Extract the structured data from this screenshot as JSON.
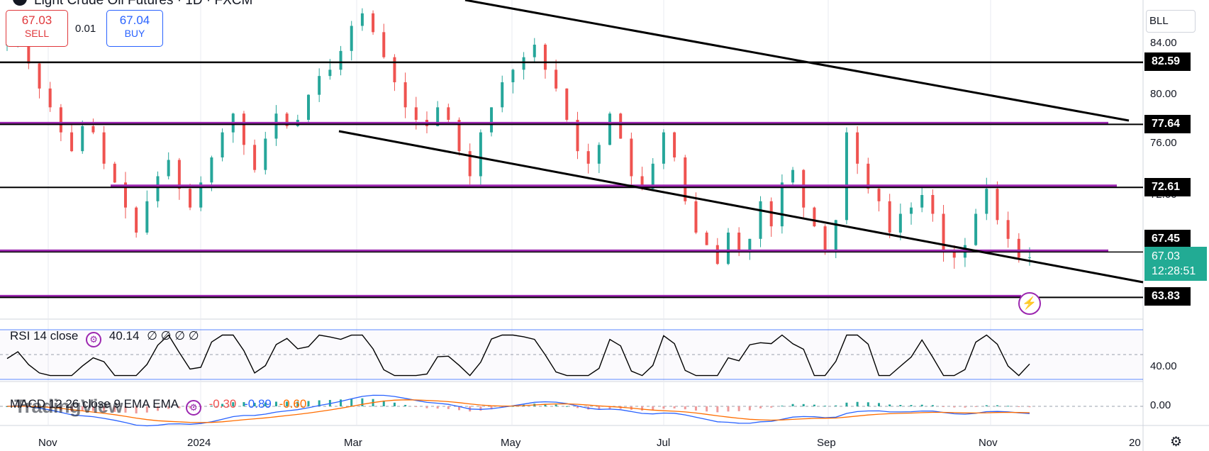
{
  "header": {
    "symbol_title": "Light Crude Oil Futures · 1D · FXCM",
    "sell_price": "67.03",
    "sell_label": "SELL",
    "spread": "0.01",
    "buy_price": "67.04",
    "buy_label": "BUY",
    "currency_badge": "BLL"
  },
  "price_axis": {
    "ticks": [
      "84.00",
      "80.00",
      "76.00",
      "72.00"
    ],
    "labels": [
      "82.59",
      "77.64",
      "72.61",
      "67.45",
      "63.83"
    ],
    "current_price": "67.03",
    "countdown": "12:28:51"
  },
  "rsi": {
    "title": "RSI 14 close",
    "value": "40.14",
    "placeholders": "∅ ∅ ∅ ∅",
    "axis_tick": "40.00"
  },
  "macd": {
    "title": "MACD 12 26 close 9 EMA EMA",
    "hist": "-0.30",
    "macd": "-0.89",
    "signal": "-0.60",
    "axis_tick": "0.00"
  },
  "time_axis": {
    "labels": [
      "Nov",
      "2024",
      "Mar",
      "May",
      "Jul",
      "Sep",
      "Nov",
      "20"
    ]
  },
  "watermark": "TradingView",
  "colors": {
    "up": "#26a69a",
    "down": "#ef5350",
    "sell": "#e0373b",
    "buy": "#2962ff",
    "current": "#22ab94",
    "zone": "#9c27b0"
  },
  "icons": {
    "rsi_settings": "gear-icon",
    "flash": "lightning-icon",
    "settings": "settings-icon"
  },
  "chart_data": {
    "type": "candlestick",
    "title": "",
    "xlabel": "",
    "ylabel": "",
    "ylim": [
      61.5,
      86.5
    ],
    "x_labels": [
      "Nov",
      "2024",
      "Mar",
      "May",
      "Jul",
      "Sep",
      "Nov",
      "20"
    ],
    "close_path": [
      [
        84.0,
        85.0
      ],
      [
        82.5,
        80.5
      ],
      [
        79.0,
        77.0
      ],
      [
        75.5,
        77.5
      ],
      [
        77.0,
        74.5
      ],
      [
        73.0,
        71.0
      ],
      [
        69.0,
        71.5
      ],
      [
        73.5,
        74.8
      ],
      [
        72.5,
        71.0
      ],
      [
        73.0,
        75.0
      ],
      [
        77.0,
        78.5
      ],
      [
        76.0,
        74.0
      ],
      [
        76.5,
        78.5
      ],
      [
        77.5,
        78.0
      ],
      [
        80.0,
        81.5
      ],
      [
        82.0,
        83.5
      ],
      [
        85.5,
        86.5
      ],
      [
        85.0,
        83.0
      ],
      [
        81.0,
        79.0
      ],
      [
        78.0,
        77.5
      ],
      [
        79.0,
        78.0
      ],
      [
        75.5,
        73.5
      ],
      [
        77.0,
        79.0
      ],
      [
        81.0,
        82.0
      ],
      [
        83.0,
        84.0
      ],
      [
        82.0,
        80.5
      ],
      [
        78.0,
        75.5
      ],
      [
        74.5,
        76.0
      ],
      [
        78.5,
        76.5
      ],
      [
        73.5,
        72.5
      ],
      [
        74.5,
        77.0
      ],
      [
        75.0,
        71.5
      ],
      [
        69.0,
        68.0
      ],
      [
        66.5,
        69.0
      ],
      [
        67.5,
        68.5
      ],
      [
        71.5,
        69.5
      ],
      [
        73.0,
        74.0
      ],
      [
        71.0,
        69.5
      ],
      [
        67.5,
        70.0
      ],
      [
        77.0,
        74.5
      ],
      [
        72.5,
        71.5
      ],
      [
        69.0,
        70.5
      ],
      [
        71.0,
        72.0
      ],
      [
        70.5,
        67.5
      ],
      [
        67.0,
        68.0
      ],
      [
        70.5,
        72.5
      ],
      [
        70.0,
        68.5
      ],
      [
        67.0,
        67.03
      ]
    ],
    "horizontal_levels": [
      82.59,
      77.64,
      72.61,
      67.45,
      63.83
    ],
    "rsi_last": 40.14,
    "macd_last": -0.89,
    "signal_last": -0.6,
    "hist_last": -0.3
  }
}
